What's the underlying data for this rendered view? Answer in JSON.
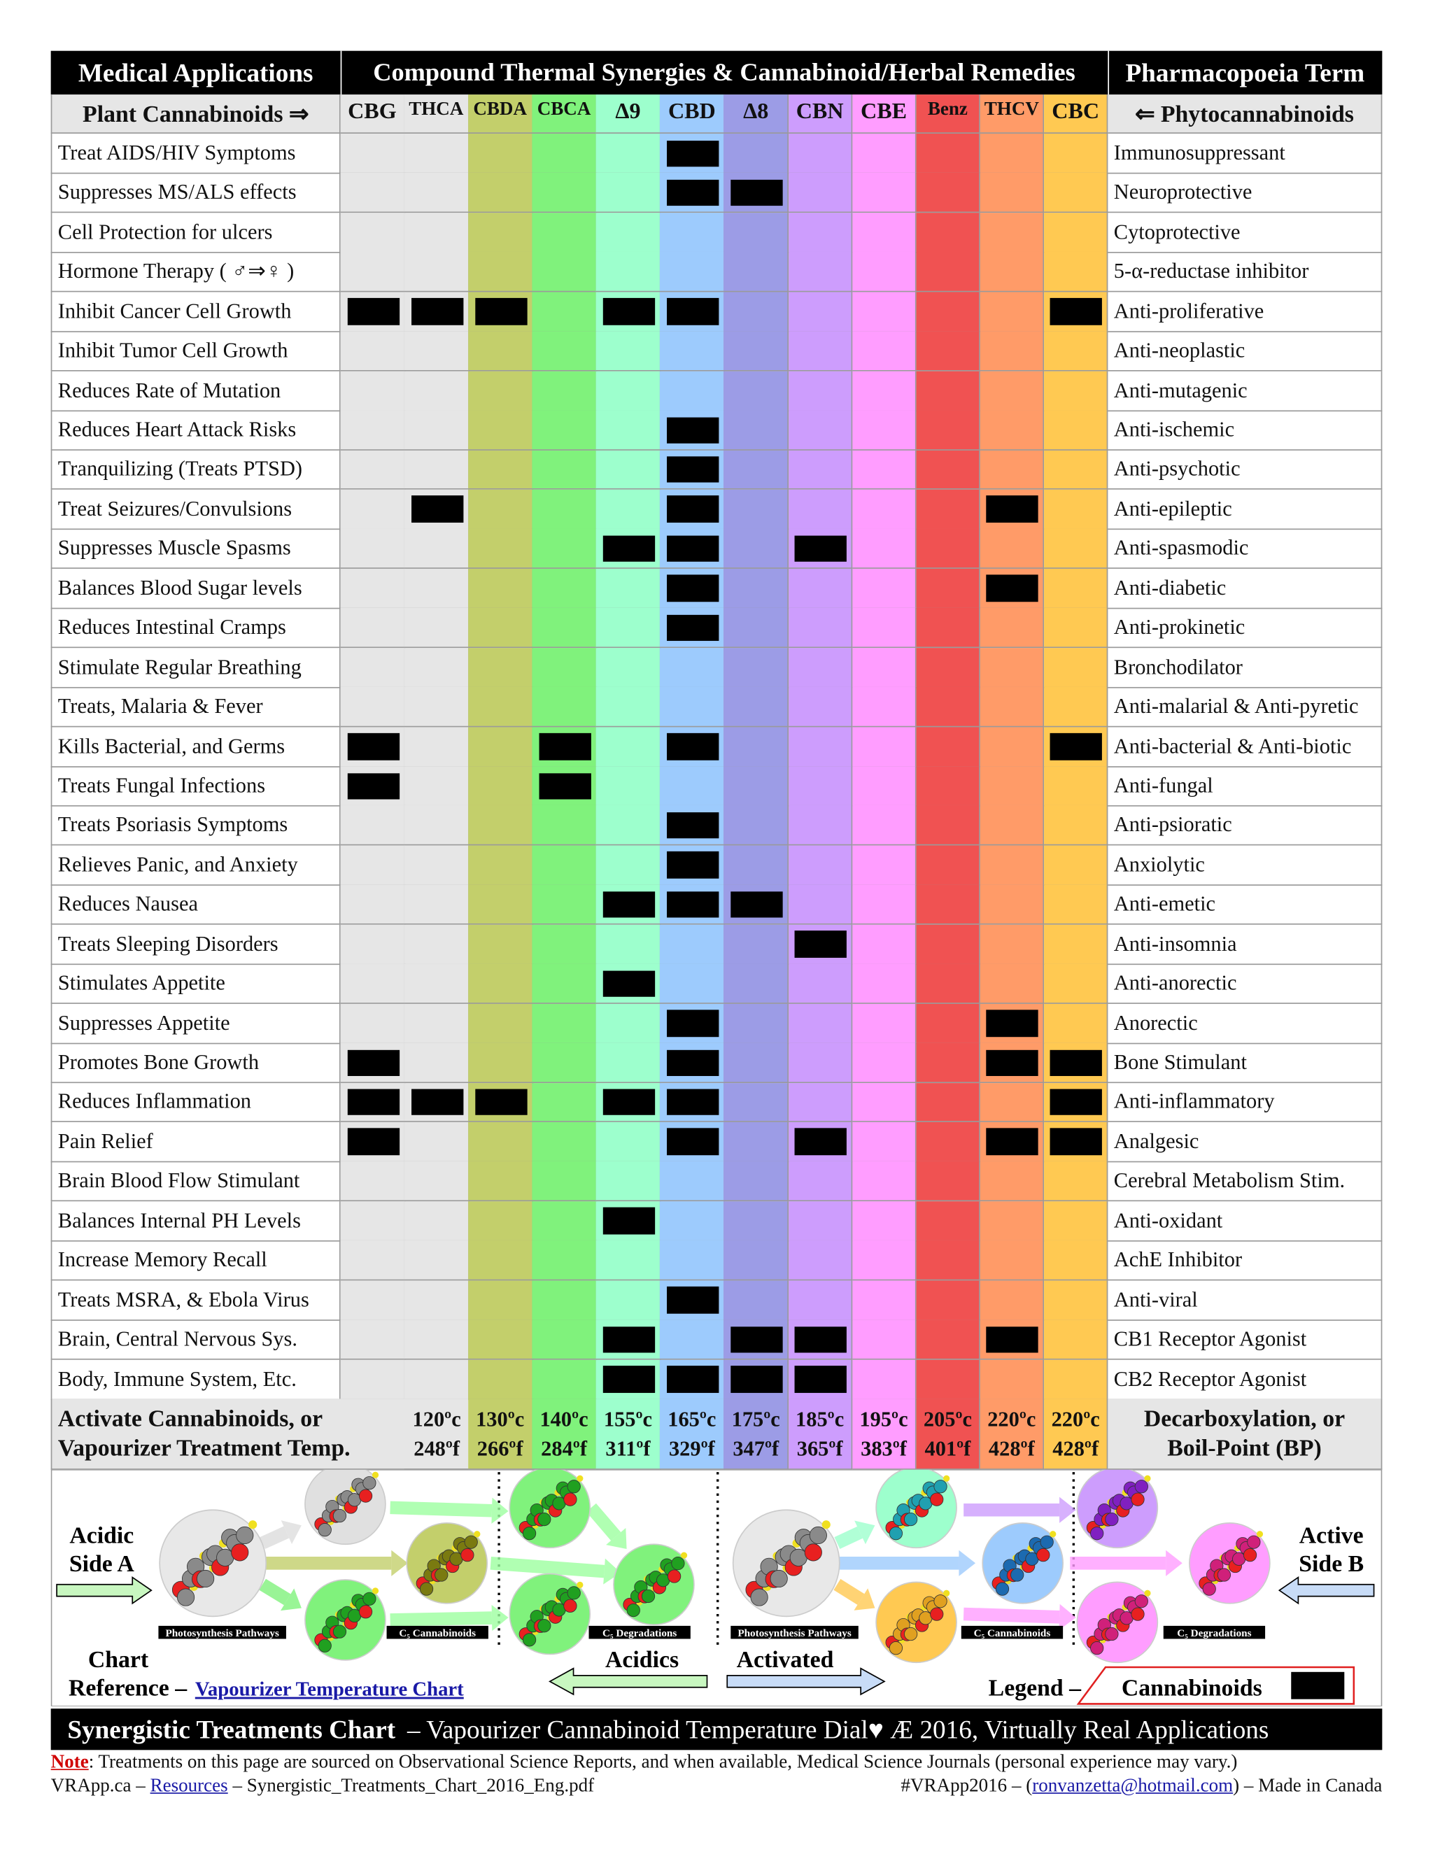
{
  "header": {
    "applications": "Medical Applications",
    "synergies": "Compound Thermal Synergies & Cannabinoid/Herbal Remedies",
    "term": "Pharmacopoeia Term"
  },
  "subheader": {
    "left": "Plant Cannabinoids ⇒",
    "right": "⇐ Phytocannabinoids"
  },
  "columns": [
    {
      "name": "CBG",
      "color": "#e6e6e6"
    },
    {
      "name": "THCA",
      "color": "#e6e6e6",
      "celsius": "120ºc",
      "fahrenheit": "248ºf"
    },
    {
      "name": "CBDA",
      "color": "#c3cf6b",
      "celsius": "130ºc",
      "fahrenheit": "266ºf"
    },
    {
      "name": "CBCA",
      "color": "#80f27c",
      "celsius": "140ºc",
      "fahrenheit": "284ºf"
    },
    {
      "name": "Δ9",
      "color": "#9dffcd",
      "celsius": "155ºc",
      "fahrenheit": "311ºf"
    },
    {
      "name": "CBD",
      "color": "#9dcbfd",
      "celsius": "165ºc",
      "fahrenheit": "329ºf"
    },
    {
      "name": "Δ8",
      "color": "#9c9ce6",
      "celsius": "175ºc",
      "fahrenheit": "347ºf"
    },
    {
      "name": "CBN",
      "color": "#cd9dfd",
      "celsius": "185ºc",
      "fahrenheit": "365ºf"
    },
    {
      "name": "CBE",
      "color": "#ff9dff",
      "celsius": "195ºc",
      "fahrenheit": "383ºf"
    },
    {
      "name": "Benz",
      "color": "#f05252",
      "celsius": "205ºc",
      "fahrenheit": "401ºf"
    },
    {
      "name": "THCV",
      "color": "#ff9b68",
      "celsius": "220ºc",
      "fahrenheit": "428ºf"
    },
    {
      "name": "CBC",
      "color": "#ffc952",
      "celsius": "220ºc",
      "fahrenheit": "428ºf"
    }
  ],
  "rows": [
    {
      "application": "Treat AIDS/HIV Symptoms",
      "term": "Immunosuppressant",
      "marks": [
        false,
        false,
        false,
        false,
        false,
        true,
        false,
        false,
        false,
        false,
        false,
        false
      ]
    },
    {
      "application": "Suppresses MS/ALS effects",
      "term": "Neuroprotective",
      "marks": [
        false,
        false,
        false,
        false,
        false,
        true,
        true,
        false,
        false,
        false,
        false,
        false
      ]
    },
    {
      "application": "Cell Protection for ulcers",
      "term": "Cytoprotective",
      "marks": [
        false,
        false,
        false,
        false,
        false,
        false,
        false,
        false,
        false,
        false,
        false,
        false
      ]
    },
    {
      "application": "Hormone Therapy ( ♂⇒♀ )",
      "term": "5-α-reductase inhibitor",
      "marks": [
        false,
        false,
        false,
        false,
        false,
        false,
        false,
        false,
        false,
        false,
        false,
        false
      ]
    },
    {
      "application": "Inhibit Cancer Cell Growth",
      "term": "Anti-proliferative",
      "marks": [
        true,
        true,
        true,
        false,
        true,
        true,
        false,
        false,
        false,
        false,
        false,
        true
      ]
    },
    {
      "application": "Inhibit Tumor Cell Growth",
      "term": "Anti-neoplastic",
      "marks": [
        false,
        false,
        false,
        false,
        false,
        false,
        false,
        false,
        false,
        false,
        false,
        false
      ]
    },
    {
      "application": "Reduces Rate of Mutation",
      "term": "Anti-mutagenic",
      "marks": [
        false,
        false,
        false,
        false,
        false,
        false,
        false,
        false,
        false,
        false,
        false,
        false
      ]
    },
    {
      "application": "Reduces Heart Attack Risks",
      "term": "Anti-ischemic",
      "marks": [
        false,
        false,
        false,
        false,
        false,
        true,
        false,
        false,
        false,
        false,
        false,
        false
      ]
    },
    {
      "application": "Tranquilizing (Treats PTSD)",
      "term": "Anti-psychotic",
      "marks": [
        false,
        false,
        false,
        false,
        false,
        true,
        false,
        false,
        false,
        false,
        false,
        false
      ]
    },
    {
      "application": "Treat Seizures/Convulsions",
      "term": "Anti-epileptic",
      "marks": [
        false,
        true,
        false,
        false,
        false,
        true,
        false,
        false,
        false,
        false,
        true,
        false
      ]
    },
    {
      "application": "Suppresses Muscle Spasms",
      "term": "Anti-spasmodic",
      "marks": [
        false,
        false,
        false,
        false,
        true,
        true,
        false,
        true,
        false,
        false,
        false,
        false
      ]
    },
    {
      "application": "Balances Blood Sugar levels",
      "term": "Anti-diabetic",
      "marks": [
        false,
        false,
        false,
        false,
        false,
        true,
        false,
        false,
        false,
        false,
        true,
        false
      ]
    },
    {
      "application": "Reduces Intestinal Cramps",
      "term": "Anti-prokinetic",
      "marks": [
        false,
        false,
        false,
        false,
        false,
        true,
        false,
        false,
        false,
        false,
        false,
        false
      ]
    },
    {
      "application": "Stimulate Regular Breathing",
      "term": "Bronchodilator",
      "marks": [
        false,
        false,
        false,
        false,
        false,
        false,
        false,
        false,
        false,
        false,
        false,
        false
      ]
    },
    {
      "application": "Treats, Malaria & Fever",
      "term": "Anti-malarial & Anti-pyretic",
      "marks": [
        false,
        false,
        false,
        false,
        false,
        false,
        false,
        false,
        false,
        false,
        false,
        false
      ]
    },
    {
      "application": "Kills Bacterial, and Germs",
      "term": "Anti-bacterial & Anti-biotic",
      "marks": [
        true,
        false,
        false,
        true,
        false,
        true,
        false,
        false,
        false,
        false,
        false,
        true
      ]
    },
    {
      "application": "Treats Fungal Infections",
      "term": "Anti-fungal",
      "marks": [
        true,
        false,
        false,
        true,
        false,
        false,
        false,
        false,
        false,
        false,
        false,
        false
      ]
    },
    {
      "application": "Treats Psoriasis Symptoms",
      "term": "Anti-psioratic",
      "marks": [
        false,
        false,
        false,
        false,
        false,
        true,
        false,
        false,
        false,
        false,
        false,
        false
      ]
    },
    {
      "application": "Relieves Panic, and Anxiety",
      "term": "Anxiolytic",
      "marks": [
        false,
        false,
        false,
        false,
        false,
        true,
        false,
        false,
        false,
        false,
        false,
        false
      ]
    },
    {
      "application": "Reduces Nausea",
      "term": "Anti-emetic",
      "marks": [
        false,
        false,
        false,
        false,
        true,
        true,
        true,
        false,
        false,
        false,
        false,
        false
      ]
    },
    {
      "application": "Treats Sleeping Disorders",
      "term": "Anti-insomnia",
      "marks": [
        false,
        false,
        false,
        false,
        false,
        false,
        false,
        true,
        false,
        false,
        false,
        false
      ]
    },
    {
      "application": "Stimulates Appetite",
      "term": "Anti-anorectic",
      "marks": [
        false,
        false,
        false,
        false,
        true,
        false,
        false,
        false,
        false,
        false,
        false,
        false
      ]
    },
    {
      "application": "Suppresses Appetite",
      "term": "Anorectic",
      "marks": [
        false,
        false,
        false,
        false,
        false,
        true,
        false,
        false,
        false,
        false,
        true,
        false
      ]
    },
    {
      "application": "Promotes Bone Growth",
      "term": "Bone Stimulant",
      "marks": [
        true,
        false,
        false,
        false,
        false,
        true,
        false,
        false,
        false,
        false,
        true,
        true
      ]
    },
    {
      "application": "Reduces Inflammation",
      "term": "Anti-inflammatory",
      "marks": [
        true,
        true,
        true,
        false,
        true,
        true,
        false,
        false,
        false,
        false,
        false,
        true
      ]
    },
    {
      "application": "Pain Relief",
      "term": "Analgesic",
      "marks": [
        true,
        false,
        false,
        false,
        false,
        true,
        false,
        true,
        false,
        false,
        true,
        true
      ]
    },
    {
      "application": "Brain Blood Flow Stimulant",
      "term": "Cerebral Metabolism Stim.",
      "marks": [
        false,
        false,
        false,
        false,
        false,
        false,
        false,
        false,
        false,
        false,
        false,
        false
      ]
    },
    {
      "application": "Balances Internal PH Levels",
      "term": "Anti-oxidant",
      "marks": [
        false,
        false,
        false,
        false,
        true,
        false,
        false,
        false,
        false,
        false,
        false,
        false
      ]
    },
    {
      "application": "Increase Memory Recall",
      "term": "AchE Inhibitor",
      "marks": [
        false,
        false,
        false,
        false,
        false,
        false,
        false,
        false,
        false,
        false,
        false,
        false
      ]
    },
    {
      "application": "Treats MSRA, & Ebola Virus",
      "term": "Anti-viral",
      "marks": [
        false,
        false,
        false,
        false,
        false,
        true,
        false,
        false,
        false,
        false,
        false,
        false
      ]
    },
    {
      "application": "Brain, Central Nervous Sys.",
      "term": "CB1 Receptor Agonist",
      "marks": [
        false,
        false,
        false,
        false,
        true,
        false,
        true,
        true,
        false,
        false,
        true,
        false
      ]
    },
    {
      "application": "Body, Immune System, Etc.",
      "term": "CB2 Receptor Agonist",
      "marks": [
        false,
        false,
        false,
        false,
        true,
        true,
        true,
        true,
        false,
        false,
        false,
        false
      ]
    }
  ],
  "temperature_row": {
    "left": [
      "Activate Cannabinoids, or",
      "Vapourizer Treatment Temp."
    ],
    "right": [
      "Decarboxylation, or",
      "Boil-Point (BP)"
    ]
  },
  "diagram": {
    "side_a": [
      "Acidic",
      "Side A"
    ],
    "side_b": [
      "Active",
      "Side B"
    ],
    "pathway_labels": [
      "Photosynthesis Pathways",
      "C₅ Cannabinoids",
      "C₅ Degradations",
      "Photosynthesis Pathways",
      "C₅ Cannabinoids",
      "C₅ Degradations"
    ],
    "acidics": "Acidics",
    "activated": "Activated",
    "chart_reference": [
      "Chart",
      "Reference –"
    ],
    "reference_link": "Vapourizer Temperature Chart",
    "legend": "Legend –",
    "legend_item": "Cannabinoids"
  },
  "footer": {
    "title_bold": "Synergistic Treatments Chart",
    "title_rest": "–  Vapourizer Cannabinoid Temperature Dial♥ Æ 2016, Virtually Real Applications",
    "note_label": "Note",
    "note_text": ":  Treatments on this page are sourced on Observational Science Reports, and when available, Medical Science Journals (personal experience may vary.)",
    "left_line": [
      "VRApp.ca –",
      "Resources",
      "– Synergistic_Treatments_Chart_2016_Eng.pdf"
    ],
    "right_line": [
      "#VRApp2016 – (",
      "ronvanzetta@hotmail.com",
      ") – Made in Canada"
    ]
  }
}
